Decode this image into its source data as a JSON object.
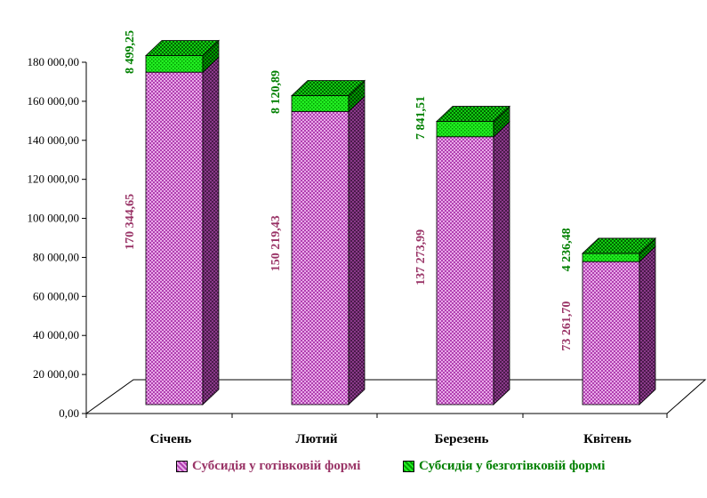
{
  "chart_data": {
    "type": "bar",
    "stacked": true,
    "three_d": true,
    "categories": [
      "Січень",
      "Лютий",
      "Березень",
      "Квітень"
    ],
    "series": [
      {
        "name": "Субсидія у готівковій формі",
        "values": [
          170344.65,
          150219.43,
          137273.99,
          73261.7
        ],
        "labels": [
          "170 344,65",
          "150 219,43",
          "137 273,99",
          "73 261,70"
        ],
        "color": "#cc66cc",
        "label_color": "#993366"
      },
      {
        "name": "Субсидія у безготівковій формі",
        "values": [
          8499.25,
          8120.89,
          7841.51,
          4236.48
        ],
        "labels": [
          "8 499,25",
          "8 120,89",
          "7 841,51",
          "4 236,48"
        ],
        "color": "#00dd00",
        "label_color": "#008000"
      }
    ],
    "yticks": [
      {
        "value": 0,
        "label": "0,00"
      },
      {
        "value": 20000,
        "label": "20 000,00"
      },
      {
        "value": 40000,
        "label": "40 000,00"
      },
      {
        "value": 60000,
        "label": "60 000,00"
      },
      {
        "value": 80000,
        "label": "80 000,00"
      },
      {
        "value": 100000,
        "label": "100 000,00"
      },
      {
        "value": 120000,
        "label": "120 000,00"
      },
      {
        "value": 140000,
        "label": "140 000,00"
      },
      {
        "value": 160000,
        "label": "160 000,00"
      },
      {
        "value": 180000,
        "label": "180 000,00"
      }
    ],
    "ylim": [
      0,
      180000
    ],
    "grid": false,
    "legend_position": "bottom"
  }
}
